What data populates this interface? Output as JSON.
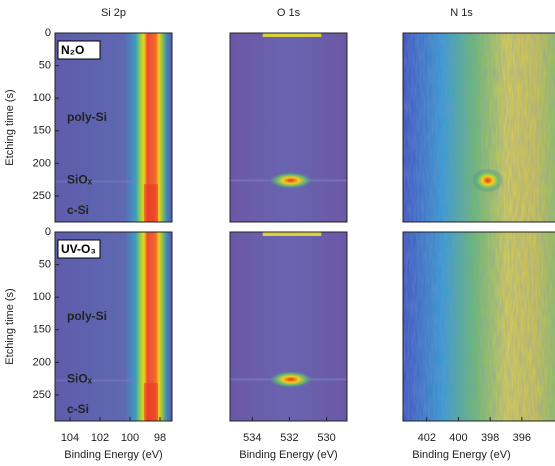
{
  "chart_data": [
    {
      "type": "heatmap",
      "title": "Si 2p",
      "label": "N₂O",
      "annotations": [
        "poly-Si",
        "SiOₓ",
        "c-Si"
      ],
      "ylabel": "Etching time (s)",
      "ylim": [
        0,
        290
      ],
      "yticks": [
        0,
        50,
        100,
        150,
        200,
        250
      ]
    },
    {
      "type": "heatmap",
      "title": "O 1s"
    },
    {
      "type": "heatmap",
      "title": "N 1s"
    },
    {
      "type": "heatmap",
      "label": "UV-O₃",
      "annotations": [
        "poly-Si",
        "SiOₓ",
        "c-Si"
      ],
      "ylabel": "Etching time (s)",
      "ylim": [
        0,
        290
      ],
      "yticks": [
        0,
        50,
        100,
        150,
        200,
        250
      ],
      "xlabel": "Binding Energy (eV)",
      "xlim": [
        105,
        97.2
      ],
      "xticks": [
        104,
        102,
        100,
        98
      ]
    },
    {
      "type": "heatmap",
      "xlabel": "Binding Energy (eV)",
      "xlim": [
        535.2,
        528.9
      ],
      "xticks": [
        534,
        532,
        530
      ]
    },
    {
      "type": "heatmap",
      "xlabel": "Binding Energy (eV)",
      "xlim": [
        403.5,
        393.4
      ],
      "xticks": [
        402,
        400,
        398,
        396
      ]
    }
  ]
}
